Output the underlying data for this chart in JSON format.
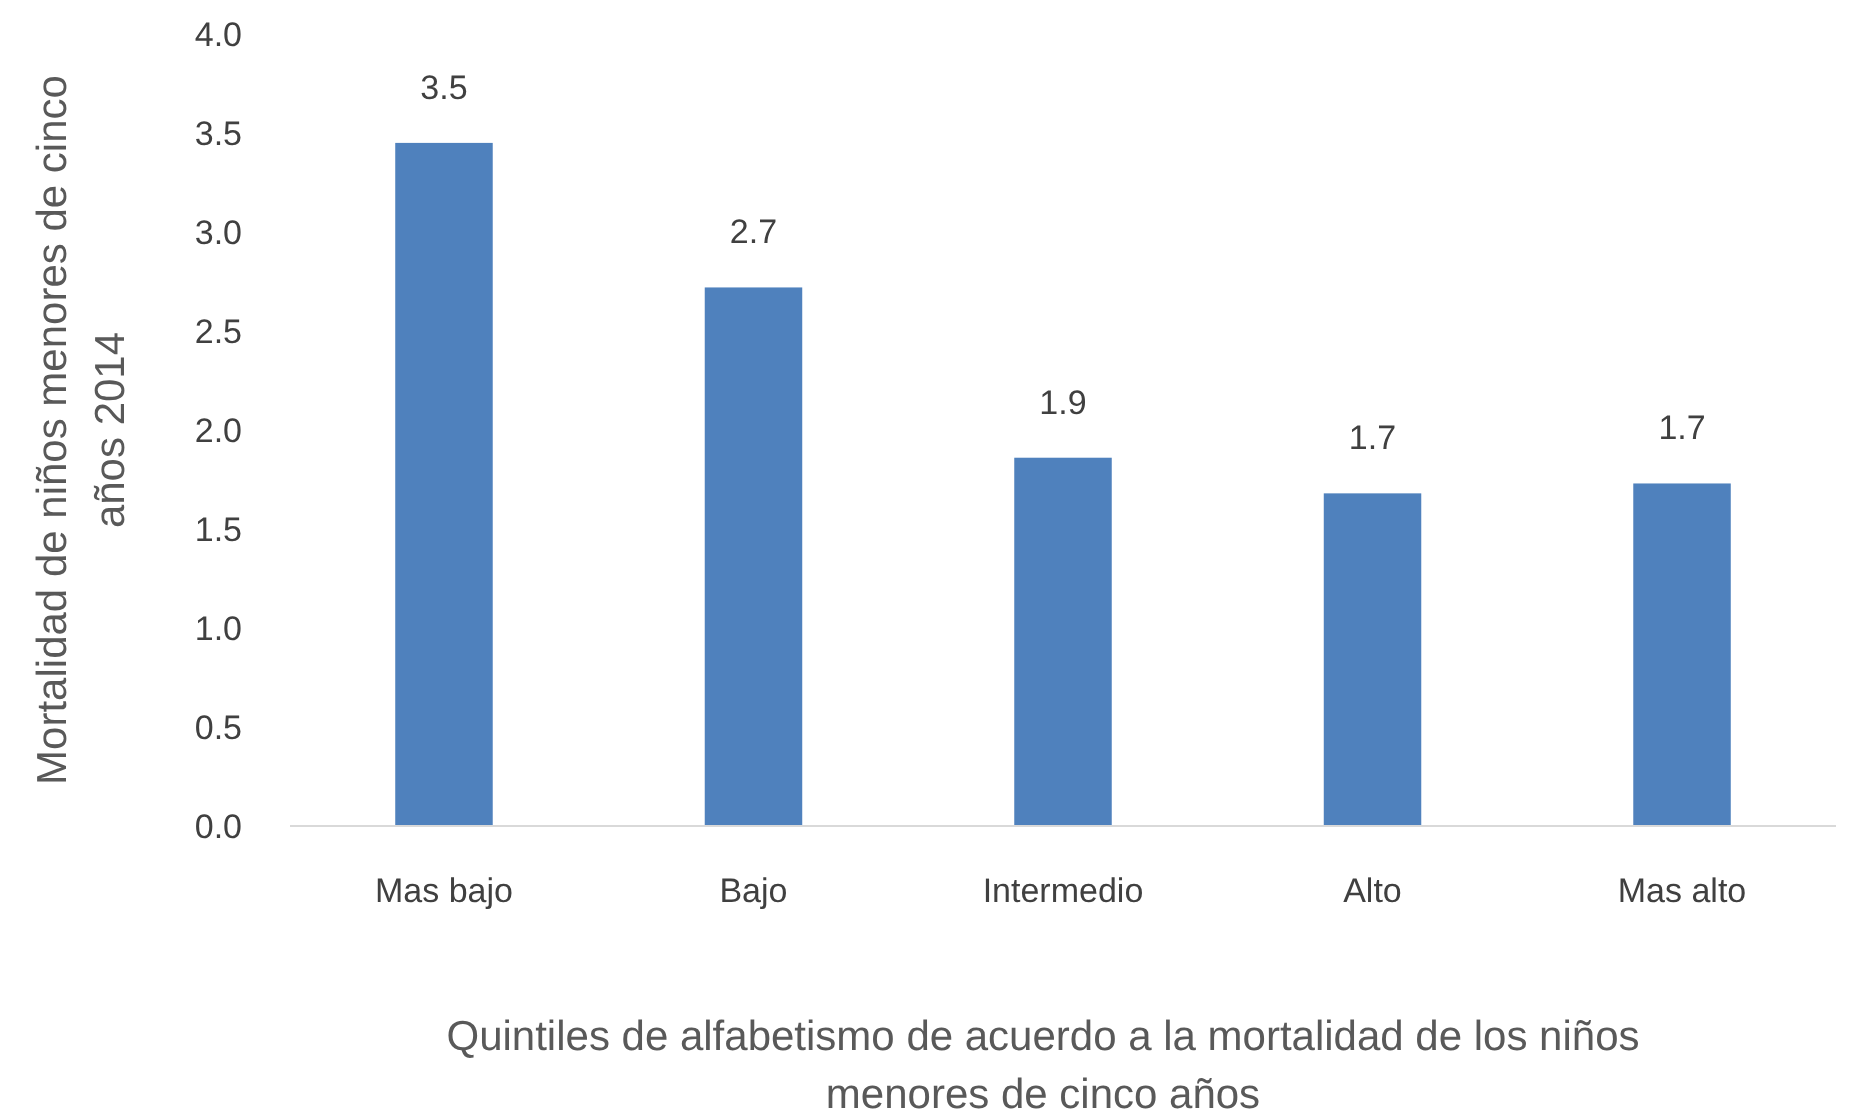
{
  "chart_data": {
    "type": "bar",
    "xlabel": "Quintiles de alfabetismo de acuerdo a la mortalidad de los niños\nmenores de cinco años",
    "ylabel": "Mortalidad de niños menores de cinco\naños 2014",
    "categories": [
      "Mas bajo",
      "Bajo",
      "Intermedio",
      "Alto",
      "Mas alto"
    ],
    "values": [
      3.45,
      2.72,
      1.86,
      1.68,
      1.73
    ],
    "value_labels": [
      "3.5",
      "2.7",
      "1.9",
      "1.7",
      "1.7"
    ],
    "color": "#4f81bd",
    "ylim": [
      0,
      4
    ],
    "yticks": [
      {
        "value": 0,
        "label": "0.0"
      },
      {
        "value": 0.5,
        "label": "0.5"
      },
      {
        "value": 1,
        "label": "1.0"
      },
      {
        "value": 1.5,
        "label": "1.5"
      },
      {
        "value": 2,
        "label": "2.0"
      },
      {
        "value": 2.5,
        "label": "2.5"
      },
      {
        "value": 3,
        "label": "3.0"
      },
      {
        "value": 3.5,
        "label": "3.5"
      },
      {
        "value": 4,
        "label": "4.0"
      }
    ],
    "grid": false
  }
}
